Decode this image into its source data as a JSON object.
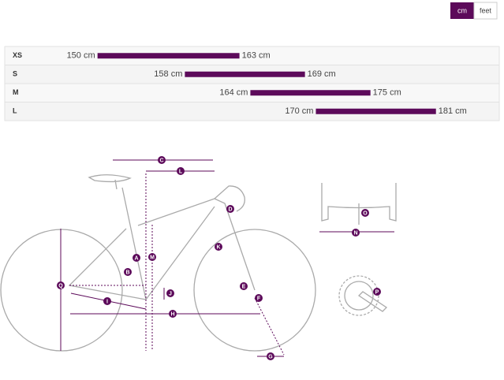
{
  "units_toggle": [
    "cm",
    "feet"
  ],
  "chart_data": {
    "type": "range",
    "categories": [
      "XS",
      "S",
      "M",
      "L"
    ],
    "color": "#5c0a5a",
    "xlim": [
      141.5,
      186.8
    ],
    "series": [
      {
        "values": [
          150,
          158,
          164,
          170
        ],
        "value_labels": [
          "150 cm",
          "158 cm",
          "164 cm",
          "170 cm"
        ]
      },
      {
        "values": [
          163,
          169,
          175,
          181
        ],
        "value_labels": [
          "163 cm",
          "169 cm",
          "175 cm",
          "181 cm"
        ]
      }
    ]
  },
  "diagram": {
    "labels": [
      "C",
      "L",
      "D",
      "A",
      "M",
      "K",
      "B",
      "E",
      "Q",
      "J",
      "F",
      "I",
      "H",
      "G",
      "O",
      "N",
      "P"
    ]
  }
}
